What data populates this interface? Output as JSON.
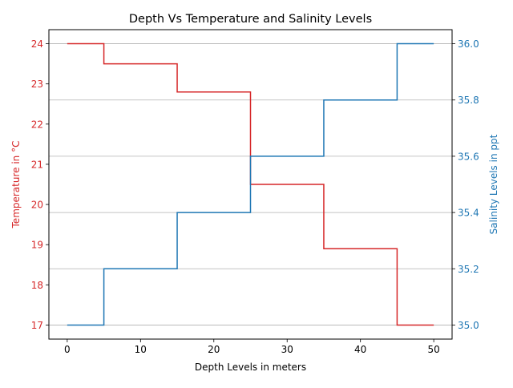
{
  "chart_data": {
    "type": "line",
    "step": "post",
    "title": "Depth Vs Temperature and Salinity Levels",
    "xlabel": "Depth Levels in meters",
    "ylabel_left": "Temperature in °C",
    "ylabel_right": "Salinity Levels in ppt",
    "x": [
      0,
      5,
      15,
      25,
      35,
      45,
      50
    ],
    "series": [
      {
        "axis": "left",
        "color": "#d62728",
        "values": [
          24.0,
          23.5,
          22.8,
          20.5,
          18.9,
          17.0,
          17.0
        ]
      },
      {
        "axis": "right",
        "color": "#1f77b4",
        "values": [
          35.0,
          35.2,
          35.4,
          35.6,
          35.8,
          36.0,
          36.0
        ]
      }
    ],
    "xlim": [
      -2.5,
      52.5
    ],
    "ylim_left": [
      16.65,
      24.35
    ],
    "ylim_right": [
      34.95,
      36.05
    ],
    "xticks": [
      0,
      10,
      20,
      30,
      40,
      50
    ],
    "yticks_left": [
      17,
      18,
      19,
      20,
      21,
      22,
      23,
      24
    ],
    "yticks_right": [
      "35.0",
      "35.2",
      "35.4",
      "35.6",
      "35.8",
      "36.0"
    ],
    "grid": "horizontal lines at right-axis ticks",
    "legend": "none"
  }
}
